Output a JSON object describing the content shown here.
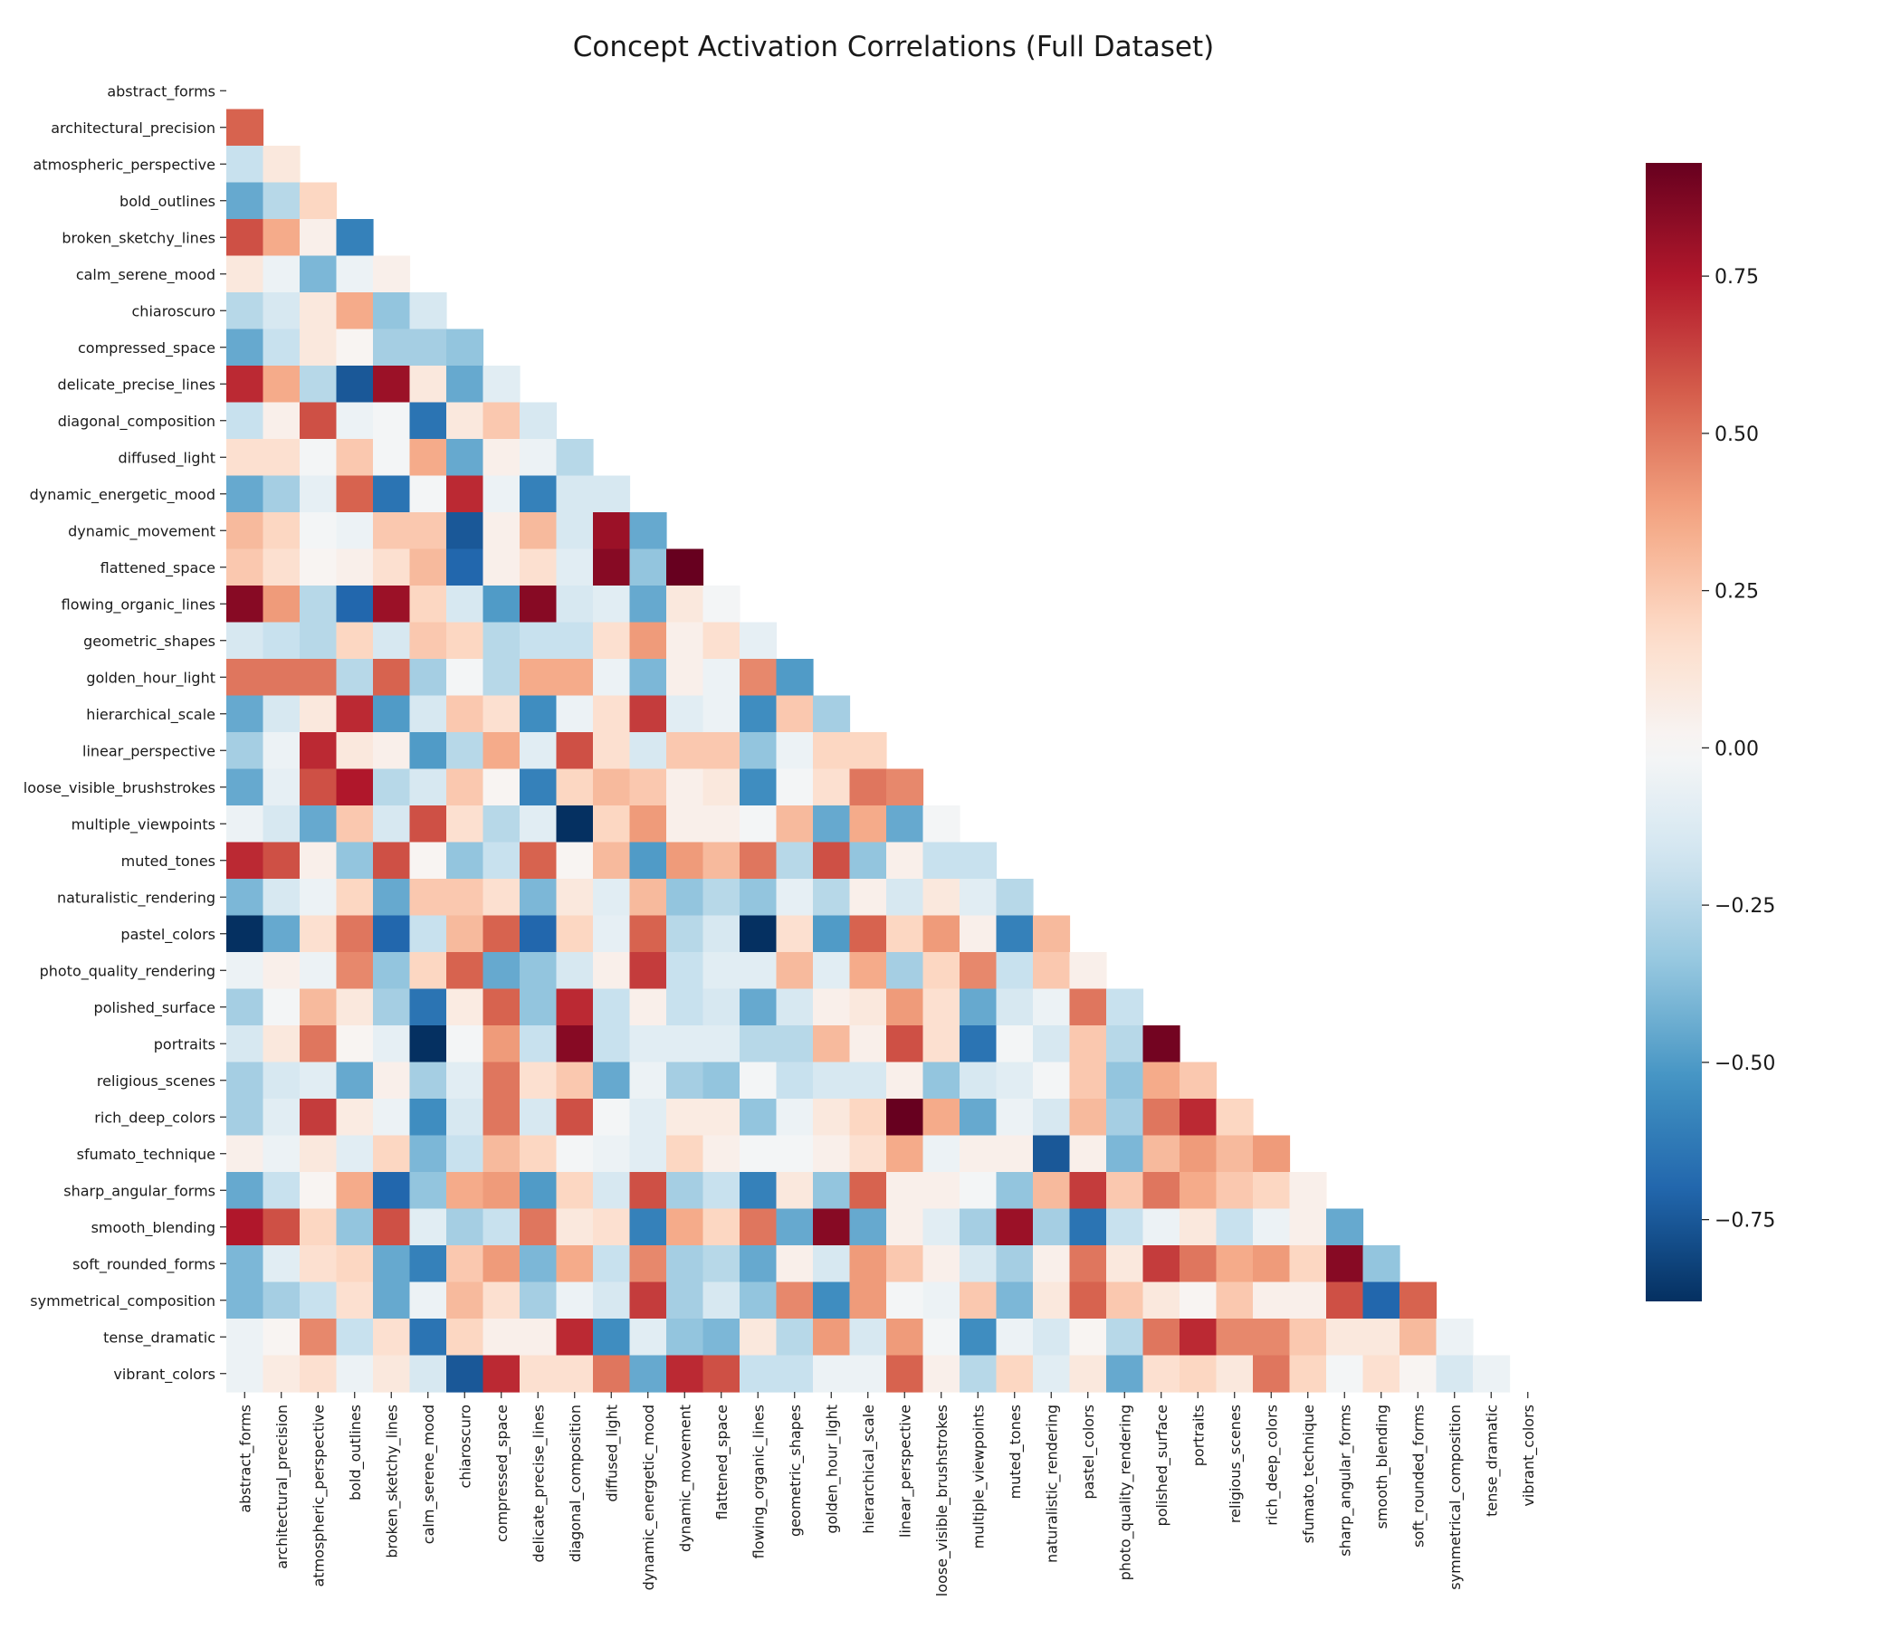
{
  "chart_data": {
    "type": "heatmap",
    "title": "Concept Activation Correlations (Full Dataset)",
    "mask": "lower-triangle (diagonal and upper triangle hidden)",
    "colormap": "RdBu_r",
    "vmin": -0.88,
    "vmax": 0.93,
    "colorbar_ticks": [
      "0.75",
      "0.50",
      "0.25",
      "0.00",
      "−0.25",
      "−0.50",
      "−0.75"
    ],
    "colorbar_tick_values": [
      0.75,
      0.5,
      0.25,
      0.0,
      -0.25,
      -0.5,
      -0.75
    ],
    "categories": [
      "abstract_forms",
      "architectural_precision",
      "atmospheric_perspective",
      "bold_outlines",
      "broken_sketchy_lines",
      "calm_serene_mood",
      "chiaroscuro",
      "compressed_space",
      "delicate_precise_lines",
      "diagonal_composition",
      "diffused_light",
      "dynamic_energetic_mood",
      "dynamic_movement",
      "flattened_space",
      "flowing_organic_lines",
      "geometric_shapes",
      "golden_hour_light",
      "hierarchical_scale",
      "linear_perspective",
      "loose_visible_brushstrokes",
      "multiple_viewpoints",
      "muted_tones",
      "naturalistic_rendering",
      "pastel_colors",
      "photo_quality_rendering",
      "polished_surface",
      "portraits",
      "religious_scenes",
      "rich_deep_colors",
      "sfumato_technique",
      "sharp_angular_forms",
      "smooth_blending",
      "soft_rounded_forms",
      "symmetrical_composition",
      "tense_dramatic",
      "vibrant_colors"
    ],
    "values": [
      [],
      [
        0.55
      ],
      [
        -0.2,
        0.1
      ],
      [
        -0.45,
        -0.25,
        0.2
      ],
      [
        0.6,
        0.35,
        0.05,
        -0.6
      ],
      [
        0.1,
        -0.05,
        -0.4,
        -0.05,
        0.05
      ],
      [
        -0.25,
        -0.15,
        0.1,
        0.35,
        -0.35,
        -0.15
      ],
      [
        -0.45,
        -0.2,
        0.1,
        0.02,
        -0.3,
        -0.3,
        -0.35
      ],
      [
        0.7,
        0.35,
        -0.25,
        -0.75,
        0.8,
        0.1,
        -0.45,
        -0.1
      ],
      [
        -0.2,
        0.05,
        0.6,
        -0.05,
        -0.02,
        -0.65,
        0.1,
        0.25,
        -0.15
      ],
      [
        0.15,
        0.15,
        -0.02,
        0.25,
        -0.02,
        0.35,
        -0.45,
        0.05,
        -0.05,
        -0.25
      ],
      [
        -0.45,
        -0.3,
        -0.08,
        0.55,
        -0.65,
        -0.02,
        0.7,
        -0.05,
        -0.6,
        -0.15,
        -0.15
      ],
      [
        0.3,
        0.2,
        -0.02,
        -0.05,
        0.25,
        0.25,
        -0.75,
        0.05,
        0.3,
        -0.15,
        0.8,
        -0.45
      ],
      [
        0.25,
        0.15,
        0.02,
        0.05,
        0.15,
        0.3,
        -0.7,
        0.05,
        0.15,
        -0.1,
        0.85,
        -0.35,
        0.93
      ],
      [
        0.85,
        0.4,
        -0.25,
        -0.7,
        0.8,
        0.2,
        -0.15,
        -0.5,
        0.85,
        -0.15,
        -0.1,
        -0.45,
        0.1,
        -0.02
      ],
      [
        -0.15,
        -0.2,
        -0.25,
        0.2,
        -0.15,
        0.25,
        0.2,
        -0.25,
        -0.2,
        -0.2,
        0.15,
        0.4,
        0.05,
        0.15,
        -0.08
      ],
      [
        0.5,
        0.5,
        0.5,
        -0.25,
        0.55,
        -0.3,
        -0.02,
        -0.25,
        0.35,
        0.35,
        -0.05,
        -0.4,
        0.05,
        -0.05,
        0.45,
        -0.5
      ],
      [
        -0.45,
        -0.15,
        0.1,
        0.7,
        -0.5,
        -0.15,
        0.25,
        0.15,
        -0.55,
        -0.05,
        0.15,
        0.65,
        -0.1,
        -0.05,
        -0.55,
        0.25,
        -0.3
      ],
      [
        -0.3,
        -0.05,
        0.7,
        0.1,
        0.05,
        -0.5,
        -0.25,
        0.35,
        -0.1,
        0.6,
        0.15,
        -0.15,
        0.25,
        0.25,
        -0.35,
        -0.05,
        0.2,
        0.2
      ],
      [
        -0.45,
        -0.08,
        0.6,
        0.75,
        -0.25,
        -0.15,
        0.25,
        0.02,
        -0.6,
        0.2,
        0.3,
        0.25,
        0.05,
        0.1,
        -0.55,
        -0.02,
        0.15,
        0.5,
        0.45
      ],
      [
        -0.05,
        -0.15,
        -0.45,
        0.25,
        -0.15,
        0.6,
        0.15,
        -0.25,
        -0.1,
        -0.88,
        0.2,
        0.4,
        0.05,
        0.05,
        -0.02,
        0.3,
        -0.45,
        0.35,
        -0.45,
        -0.02
      ],
      [
        0.7,
        0.6,
        0.05,
        -0.35,
        0.6,
        0.02,
        -0.35,
        -0.2,
        0.55,
        0.02,
        0.3,
        -0.5,
        0.4,
        0.3,
        0.5,
        -0.25,
        0.6,
        -0.35,
        0.05,
        -0.2,
        -0.2
      ],
      [
        -0.4,
        -0.15,
        -0.05,
        0.2,
        -0.45,
        0.25,
        0.25,
        0.15,
        -0.4,
        0.1,
        -0.1,
        0.3,
        -0.35,
        -0.25,
        -0.35,
        -0.08,
        -0.25,
        0.05,
        -0.15,
        0.1,
        -0.1,
        -0.25
      ],
      [
        -0.88,
        -0.45,
        0.15,
        0.5,
        -0.7,
        -0.2,
        0.3,
        0.55,
        -0.7,
        0.2,
        -0.08,
        0.55,
        -0.25,
        -0.15,
        -0.88,
        0.15,
        -0.5,
        0.55,
        0.2,
        0.4,
        0.05,
        -0.6,
        0.3
      ],
      [
        -0.05,
        0.05,
        -0.05,
        0.45,
        -0.35,
        0.2,
        0.55,
        -0.45,
        -0.35,
        -0.15,
        0.05,
        0.65,
        -0.2,
        -0.1,
        -0.1,
        0.3,
        -0.1,
        0.35,
        -0.3,
        0.2,
        0.45,
        -0.2,
        0.25,
        0.05
      ],
      [
        -0.3,
        -0.02,
        0.3,
        0.1,
        -0.3,
        -0.65,
        0.08,
        0.55,
        -0.35,
        0.7,
        -0.2,
        0.05,
        -0.2,
        -0.15,
        -0.45,
        -0.15,
        0.05,
        0.1,
        0.4,
        0.15,
        -0.45,
        -0.15,
        -0.05,
        0.5,
        -0.2
      ],
      [
        -0.15,
        0.1,
        0.5,
        0.02,
        -0.08,
        -0.88,
        -0.02,
        0.4,
        -0.2,
        0.85,
        -0.2,
        -0.1,
        -0.1,
        -0.1,
        -0.25,
        -0.25,
        0.3,
        0.05,
        0.6,
        0.15,
        -0.65,
        -0.02,
        -0.15,
        0.25,
        -0.25,
        0.9
      ],
      [
        -0.3,
        -0.15,
        -0.1,
        -0.45,
        0.05,
        -0.3,
        -0.1,
        0.5,
        0.15,
        0.25,
        -0.45,
        -0.05,
        -0.3,
        -0.35,
        -0.02,
        -0.2,
        -0.15,
        -0.15,
        0.05,
        -0.35,
        -0.15,
        -0.1,
        -0.02,
        0.25,
        -0.35,
        0.35,
        0.25
      ],
      [
        -0.3,
        -0.1,
        0.65,
        0.08,
        -0.05,
        -0.55,
        -0.15,
        0.5,
        -0.15,
        0.6,
        -0.02,
        -0.1,
        0.08,
        0.08,
        -0.35,
        -0.05,
        0.1,
        0.2,
        0.93,
        0.35,
        -0.45,
        -0.05,
        -0.15,
        0.3,
        -0.3,
        0.5,
        0.7,
        0.2
      ],
      [
        0.05,
        -0.05,
        0.1,
        -0.1,
        0.2,
        -0.4,
        -0.2,
        0.3,
        0.2,
        -0.02,
        -0.05,
        -0.1,
        0.2,
        0.05,
        -0.02,
        -0.02,
        0.05,
        0.15,
        0.35,
        -0.05,
        0.05,
        0.05,
        -0.75,
        0.05,
        -0.4,
        0.3,
        0.4,
        0.3,
        0.4
      ],
      [
        -0.45,
        -0.2,
        0.02,
        0.35,
        -0.7,
        -0.35,
        0.35,
        0.4,
        -0.5,
        0.2,
        -0.15,
        0.6,
        -0.3,
        -0.2,
        -0.6,
        0.1,
        -0.35,
        0.55,
        0.05,
        0.05,
        -0.02,
        -0.35,
        0.3,
        0.65,
        0.25,
        0.5,
        0.35,
        0.25,
        0.2,
        0.05
      ],
      [
        0.75,
        0.6,
        0.2,
        -0.35,
        0.6,
        -0.1,
        -0.3,
        -0.2,
        0.5,
        0.1,
        0.15,
        -0.6,
        0.35,
        0.2,
        0.5,
        -0.45,
        0.85,
        -0.45,
        0.05,
        -0.1,
        -0.3,
        0.8,
        -0.3,
        -0.65,
        -0.2,
        -0.05,
        0.1,
        -0.2,
        -0.05,
        0.05,
        -0.45
      ],
      [
        -0.4,
        -0.1,
        0.15,
        0.2,
        -0.45,
        -0.6,
        0.25,
        0.4,
        -0.4,
        0.35,
        -0.2,
        0.45,
        -0.3,
        -0.25,
        -0.45,
        0.05,
        -0.15,
        0.4,
        0.25,
        0.05,
        -0.15,
        -0.3,
        0.05,
        0.5,
        0.1,
        0.65,
        0.5,
        0.35,
        0.4,
        0.2,
        0.85,
        -0.35
      ],
      [
        -0.4,
        -0.3,
        -0.2,
        0.15,
        -0.45,
        -0.05,
        0.3,
        0.15,
        -0.3,
        -0.05,
        -0.15,
        0.65,
        -0.3,
        -0.15,
        -0.35,
        0.45,
        -0.55,
        0.4,
        -0.02,
        -0.05,
        0.25,
        -0.4,
        0.1,
        0.55,
        0.25,
        0.1,
        0.02,
        0.25,
        0.05,
        0.05,
        0.6,
        -0.7,
        0.55
      ],
      [
        -0.05,
        0.02,
        0.45,
        -0.2,
        0.15,
        -0.65,
        0.2,
        0.05,
        0.05,
        0.7,
        -0.55,
        -0.1,
        -0.35,
        -0.4,
        0.1,
        -0.25,
        0.4,
        -0.15,
        0.4,
        -0.02,
        -0.55,
        -0.05,
        -0.15,
        0.02,
        -0.25,
        0.5,
        0.7,
        0.45,
        0.45,
        0.25,
        0.1,
        0.1,
        0.3,
        -0.05
      ],
      [
        -0.05,
        0.08,
        0.15,
        -0.05,
        0.1,
        -0.15,
        -0.75,
        0.7,
        0.15,
        0.15,
        0.5,
        -0.45,
        0.7,
        0.6,
        -0.2,
        -0.2,
        -0.05,
        -0.05,
        0.55,
        0.05,
        -0.25,
        0.2,
        -0.1,
        0.1,
        -0.45,
        0.15,
        0.2,
        0.1,
        0.5,
        0.2,
        -0.02,
        0.15,
        0.02,
        -0.15,
        -0.05
      ]
    ]
  }
}
